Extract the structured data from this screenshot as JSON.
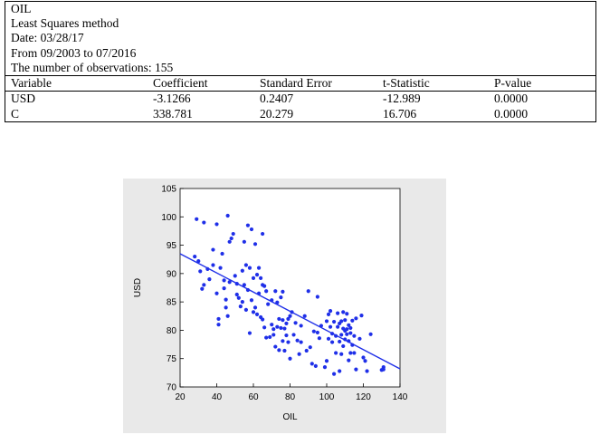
{
  "header": {
    "variable": "OIL",
    "method": "Least Squares method",
    "date": "Date: 03/28/17",
    "range": "From 09/2003 to 07/2016",
    "observations": "The number of observations: 155"
  },
  "table": {
    "columns": [
      "Variable",
      "Coefficient",
      "Standard Error",
      "t-Statistic",
      "P-value"
    ],
    "rows": [
      [
        "USD",
        "-3.1266",
        "0.2407",
        "-12.989",
        "0.0000"
      ],
      [
        "C",
        "338.781",
        "20.279",
        "16.706",
        "0.0000"
      ]
    ]
  },
  "chart_data": {
    "type": "scatter",
    "xlabel": "OIL",
    "ylabel": "USD",
    "xlim": [
      20,
      140
    ],
    "ylim": [
      70,
      105
    ],
    "xticks": [
      20,
      40,
      60,
      80,
      100,
      120,
      140
    ],
    "yticks": [
      70,
      75,
      80,
      85,
      90,
      95,
      100,
      105
    ],
    "grid": false,
    "point_color": "#1f2fe8",
    "line_color": "#1f2fe8",
    "fit_line": [
      [
        20,
        93.5
      ],
      [
        140,
        73.2
      ]
    ],
    "points": [
      [
        28,
        93
      ],
      [
        29,
        99.6
      ],
      [
        30,
        92.2
      ],
      [
        31,
        90.4
      ],
      [
        32,
        87.3
      ],
      [
        33,
        99
      ],
      [
        33,
        88
      ],
      [
        35,
        90.8
      ],
      [
        36,
        89
      ],
      [
        38,
        94.2
      ],
      [
        38,
        91.5
      ],
      [
        40,
        98.7
      ],
      [
        40,
        86.5
      ],
      [
        41,
        82
      ],
      [
        41,
        81
      ],
      [
        42,
        91
      ],
      [
        43,
        93.5
      ],
      [
        44,
        88.8
      ],
      [
        44,
        87.4
      ],
      [
        45,
        84
      ],
      [
        45,
        85.4
      ],
      [
        46,
        100.2
      ],
      [
        46,
        82.5
      ],
      [
        47,
        95.6
      ],
      [
        47,
        88.5
      ],
      [
        48,
        96.2
      ],
      [
        49,
        97
      ],
      [
        50,
        89.6
      ],
      [
        51,
        86.3
      ],
      [
        51,
        88.2
      ],
      [
        52,
        85.7
      ],
      [
        53,
        84.2
      ],
      [
        54,
        85
      ],
      [
        55,
        95.6
      ],
      [
        55,
        88
      ],
      [
        56,
        91.5
      ],
      [
        56,
        83.6
      ],
      [
        57,
        98.5
      ],
      [
        57,
        87.1
      ],
      [
        58,
        91
      ],
      [
        58,
        79.5
      ],
      [
        59,
        97.8
      ],
      [
        59,
        85.3
      ],
      [
        60,
        89.2
      ],
      [
        60,
        83.2
      ],
      [
        61,
        95.2
      ],
      [
        61,
        84
      ],
      [
        62,
        89.8
      ],
      [
        62,
        82.8
      ],
      [
        63,
        91
      ],
      [
        63,
        86.5
      ],
      [
        64,
        89.2
      ],
      [
        64,
        82.3
      ],
      [
        65,
        97
      ],
      [
        65,
        88
      ],
      [
        66,
        87.8
      ],
      [
        66,
        80.5
      ],
      [
        67,
        86.9
      ],
      [
        67,
        78.7
      ],
      [
        68,
        84.6
      ],
      [
        69,
        78.8
      ],
      [
        70,
        85.3
      ],
      [
        70,
        81
      ],
      [
        71,
        80.2
      ],
      [
        71,
        79.2
      ],
      [
        72,
        86.9
      ],
      [
        72,
        77.1
      ],
      [
        73,
        84.9
      ],
      [
        73,
        80.6
      ],
      [
        74,
        82
      ],
      [
        74,
        76.5
      ],
      [
        75,
        85.8
      ],
      [
        75,
        80.4
      ],
      [
        76,
        86.8
      ],
      [
        76,
        81.8
      ],
      [
        77,
        76.4
      ],
      [
        77,
        80.3
      ],
      [
        78,
        79.1
      ],
      [
        78,
        81.2
      ],
      [
        79,
        82
      ],
      [
        79,
        77.9
      ],
      [
        80,
        75
      ],
      [
        80,
        82.5
      ],
      [
        81,
        83.2
      ],
      [
        82,
        79.2
      ],
      [
        83,
        81.3
      ],
      [
        84,
        78.2
      ],
      [
        85,
        75.8
      ],
      [
        86,
        77.9
      ],
      [
        88,
        82.5
      ],
      [
        89,
        76.4
      ],
      [
        90,
        86.9
      ],
      [
        91,
        77
      ],
      [
        92,
        74.1
      ],
      [
        93,
        79.8
      ],
      [
        94,
        73.7
      ],
      [
        95,
        85.9
      ],
      [
        96,
        78.6
      ],
      [
        97,
        80.8
      ],
      [
        99,
        73.5
      ],
      [
        100,
        74.6
      ],
      [
        100,
        81.6
      ],
      [
        101,
        82.8
      ],
      [
        101,
        78.5
      ],
      [
        102,
        80.6
      ],
      [
        102,
        83.4
      ],
      [
        103,
        77.9
      ],
      [
        103,
        79.4
      ],
      [
        104,
        72.3
      ],
      [
        104,
        81.5
      ],
      [
        105,
        79
      ],
      [
        105,
        76
      ],
      [
        106,
        80.6
      ],
      [
        106,
        83
      ],
      [
        107,
        81.2
      ],
      [
        107,
        78
      ],
      [
        107,
        72.8
      ],
      [
        108,
        79.2
      ],
      [
        108,
        81.6
      ],
      [
        108,
        75.8
      ],
      [
        109,
        80.3
      ],
      [
        109,
        83.2
      ],
      [
        109,
        77.2
      ],
      [
        110,
        79.9
      ],
      [
        110,
        81.8
      ],
      [
        110,
        78.4
      ],
      [
        111,
        80.2
      ],
      [
        111,
        79.3
      ],
      [
        111,
        82.9
      ],
      [
        112,
        80.9
      ],
      [
        112,
        78.1
      ],
      [
        112,
        74.7
      ],
      [
        113,
        80.4
      ],
      [
        113,
        79.5
      ],
      [
        113,
        76
      ],
      [
        114,
        81.7
      ],
      [
        114,
        77.4
      ],
      [
        115,
        79
      ],
      [
        115,
        76
      ],
      [
        116,
        82.1
      ],
      [
        116,
        73.1
      ],
      [
        118,
        78.5
      ],
      [
        120,
        75.2
      ],
      [
        121,
        74.6
      ],
      [
        122,
        72.8
      ],
      [
        124,
        79.3
      ],
      [
        130,
        73
      ],
      [
        131,
        73.5
      ],
      [
        131,
        73.1
      ],
      [
        119,
        82.6
      ],
      [
        95,
        79.6
      ],
      [
        86,
        80.8
      ],
      [
        76,
        78.1
      ],
      [
        65,
        81.9
      ],
      [
        54,
        90.5
      ]
    ]
  }
}
